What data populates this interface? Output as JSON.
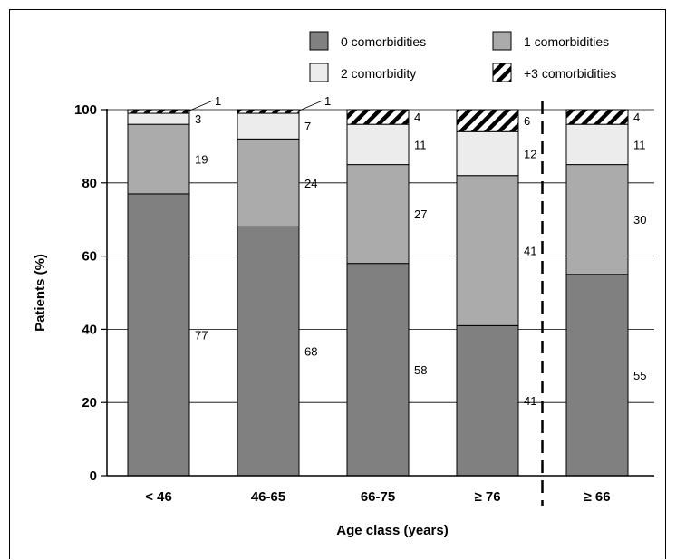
{
  "chart_data": {
    "type": "bar",
    "stacked": true,
    "xlabel": "Age class (years)",
    "ylabel": "Patients (%)",
    "ylim": [
      0,
      100
    ],
    "yticks": [
      0,
      20,
      40,
      60,
      80,
      100
    ],
    "grid": "horizontal",
    "legend_position": "top-right",
    "categories": [
      "< 46",
      "46-65",
      "66-75",
      "≥ 76",
      "≥ 66"
    ],
    "divider_after_category": 3,
    "series": [
      {
        "name": "0 comorbidities",
        "color": "#808080",
        "pattern": "solid",
        "values": [
          77,
          68,
          58,
          41,
          55
        ]
      },
      {
        "name": "1 comorbidities",
        "color": "#ababab",
        "pattern": "solid",
        "values": [
          19,
          24,
          27,
          41,
          30
        ]
      },
      {
        "name": "2 comorbidity",
        "color": "#ececec",
        "pattern": "solid",
        "values": [
          3,
          7,
          11,
          12,
          11
        ]
      },
      {
        "name": "+3 comorbidities",
        "color": "#ffffff",
        "pattern": "hatch",
        "values": [
          1,
          1,
          4,
          6,
          4
        ]
      }
    ]
  }
}
